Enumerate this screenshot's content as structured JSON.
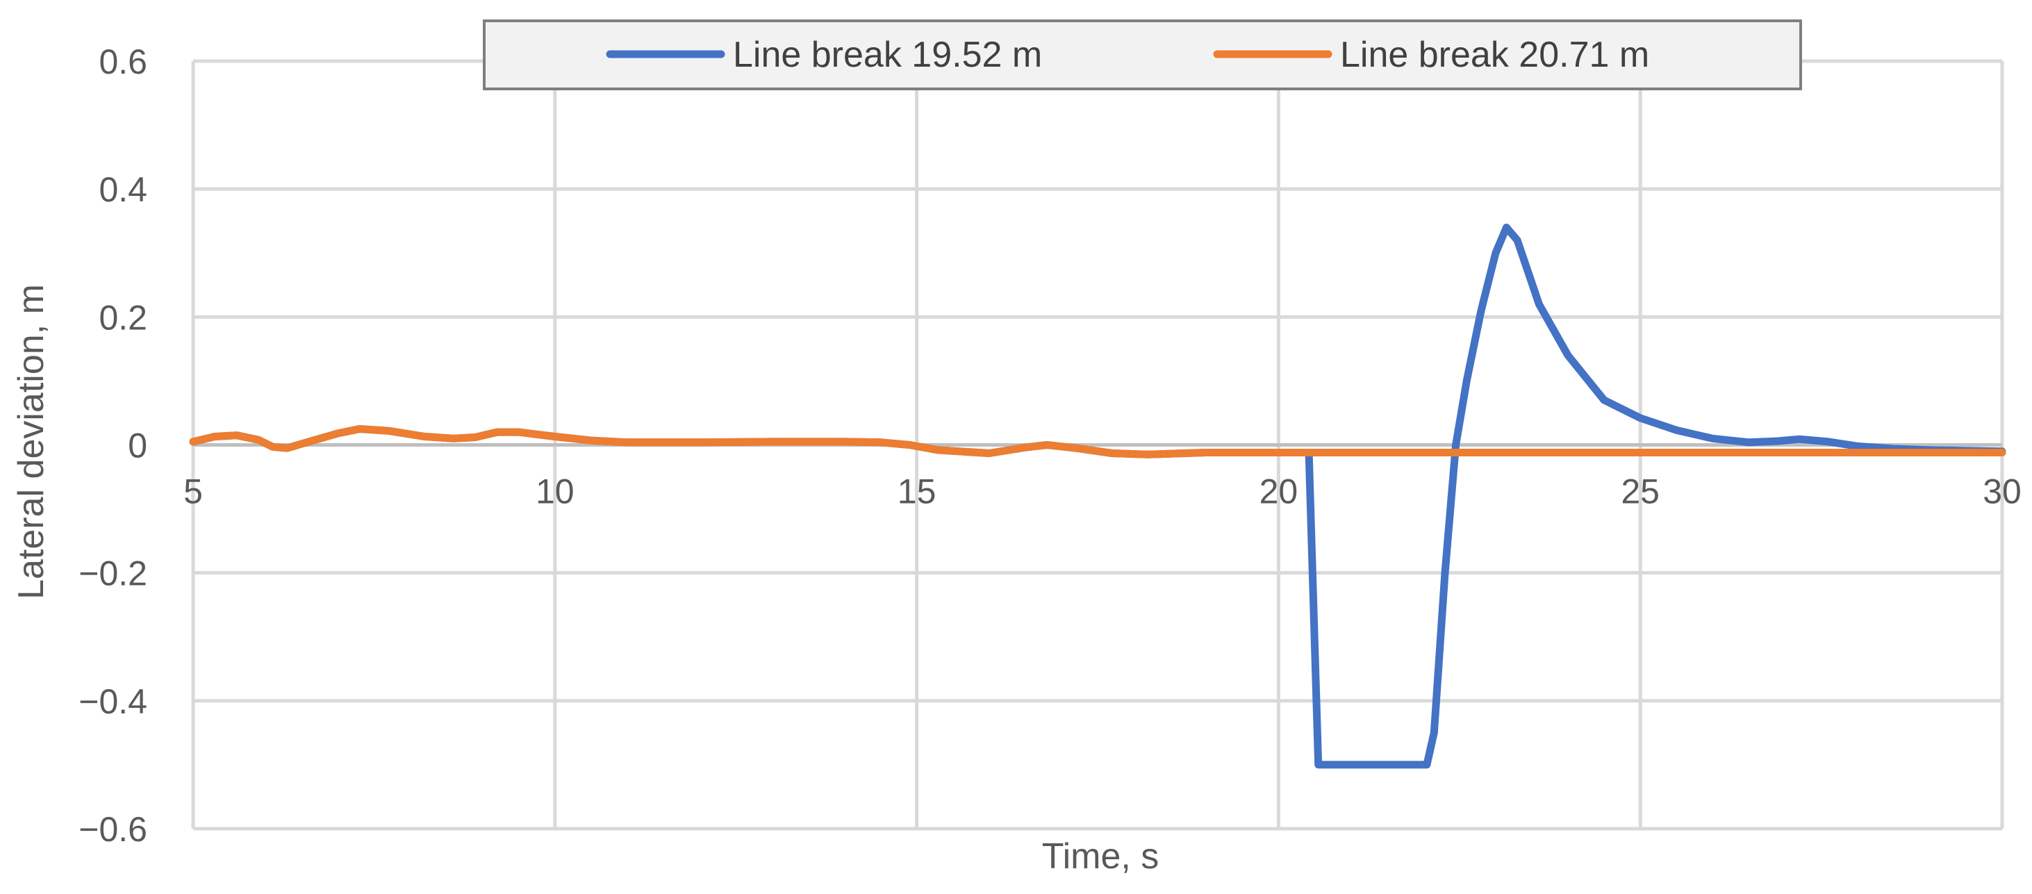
{
  "chart_data": {
    "type": "line",
    "title": "",
    "xlabel": "Time, s",
    "ylabel": "Lateral deviation, m",
    "xlim": [
      5,
      30
    ],
    "ylim": [
      -0.6,
      0.6
    ],
    "x_ticks": [
      5,
      10,
      15,
      20,
      25,
      30
    ],
    "x_tick_labels": [
      "5",
      "10",
      "15",
      "20",
      "25",
      "30"
    ],
    "y_ticks": [
      0.6,
      0.4,
      0.2,
      0,
      -0.2,
      -0.4,
      -0.6
    ],
    "y_tick_labels": [
      "0.6",
      "0.4",
      "0.2",
      "0",
      "−0.2",
      "−0.4",
      "−0.6"
    ],
    "grid": true,
    "legend_position": "top",
    "series": [
      {
        "name": "Line break 19.52 m",
        "color": "#4472C4",
        "points": [
          [
            5.0,
            0.005
          ],
          [
            5.3,
            0.013
          ],
          [
            5.6,
            0.015
          ],
          [
            5.9,
            0.008
          ],
          [
            6.1,
            -0.003
          ],
          [
            6.3,
            -0.005
          ],
          [
            6.6,
            0.005
          ],
          [
            7.0,
            0.018
          ],
          [
            7.3,
            0.025
          ],
          [
            7.7,
            0.022
          ],
          [
            8.2,
            0.013
          ],
          [
            8.6,
            0.01
          ],
          [
            8.9,
            0.012
          ],
          [
            9.2,
            0.02
          ],
          [
            9.5,
            0.02
          ],
          [
            10.0,
            0.013
          ],
          [
            10.5,
            0.007
          ],
          [
            11.0,
            0.004
          ],
          [
            12.0,
            0.004
          ],
          [
            13.0,
            0.005
          ],
          [
            14.0,
            0.005
          ],
          [
            14.5,
            0.004
          ],
          [
            14.9,
            0.0
          ],
          [
            15.3,
            -0.008
          ],
          [
            16.0,
            -0.013
          ],
          [
            16.5,
            -0.004
          ],
          [
            16.8,
            0.0
          ],
          [
            17.2,
            -0.005
          ],
          [
            17.7,
            -0.013
          ],
          [
            18.2,
            -0.015
          ],
          [
            18.7,
            -0.013
          ],
          [
            19.0,
            -0.012
          ],
          [
            20.0,
            -0.012
          ],
          [
            20.42,
            -0.012
          ],
          [
            20.55,
            -0.5
          ],
          [
            21.0,
            -0.5
          ],
          [
            21.5,
            -0.5
          ],
          [
            22.05,
            -0.5
          ],
          [
            22.15,
            -0.45
          ],
          [
            22.3,
            -0.2
          ],
          [
            22.45,
            0.0
          ],
          [
            22.6,
            0.1
          ],
          [
            22.8,
            0.21
          ],
          [
            23.0,
            0.3
          ],
          [
            23.15,
            0.34
          ],
          [
            23.3,
            0.32
          ],
          [
            23.6,
            0.22
          ],
          [
            24.0,
            0.14
          ],
          [
            24.5,
            0.07
          ],
          [
            25.0,
            0.042
          ],
          [
            25.5,
            0.023
          ],
          [
            26.0,
            0.01
          ],
          [
            26.5,
            0.004
          ],
          [
            26.9,
            0.006
          ],
          [
            27.2,
            0.009
          ],
          [
            27.6,
            0.005
          ],
          [
            28.0,
            -0.002
          ],
          [
            28.5,
            -0.006
          ],
          [
            29.0,
            -0.008
          ],
          [
            30.0,
            -0.01
          ]
        ]
      },
      {
        "name": "Line break 20.71 m",
        "color": "#ED7D31",
        "points": [
          [
            5.0,
            0.005
          ],
          [
            5.3,
            0.013
          ],
          [
            5.6,
            0.015
          ],
          [
            5.9,
            0.008
          ],
          [
            6.1,
            -0.003
          ],
          [
            6.3,
            -0.005
          ],
          [
            6.6,
            0.005
          ],
          [
            7.0,
            0.018
          ],
          [
            7.3,
            0.025
          ],
          [
            7.7,
            0.022
          ],
          [
            8.2,
            0.013
          ],
          [
            8.6,
            0.01
          ],
          [
            8.9,
            0.012
          ],
          [
            9.2,
            0.02
          ],
          [
            9.5,
            0.02
          ],
          [
            10.0,
            0.013
          ],
          [
            10.5,
            0.007
          ],
          [
            11.0,
            0.004
          ],
          [
            12.0,
            0.004
          ],
          [
            13.0,
            0.005
          ],
          [
            14.0,
            0.005
          ],
          [
            14.5,
            0.004
          ],
          [
            14.9,
            0.0
          ],
          [
            15.3,
            -0.008
          ],
          [
            16.0,
            -0.013
          ],
          [
            16.5,
            -0.004
          ],
          [
            16.8,
            0.0
          ],
          [
            17.2,
            -0.005
          ],
          [
            17.7,
            -0.013
          ],
          [
            18.2,
            -0.015
          ],
          [
            18.7,
            -0.013
          ],
          [
            19.0,
            -0.012
          ],
          [
            20.0,
            -0.012
          ],
          [
            22.0,
            -0.012
          ],
          [
            24.0,
            -0.012
          ],
          [
            26.0,
            -0.012
          ],
          [
            28.0,
            -0.012
          ],
          [
            30.0,
            -0.012
          ]
        ]
      }
    ]
  }
}
